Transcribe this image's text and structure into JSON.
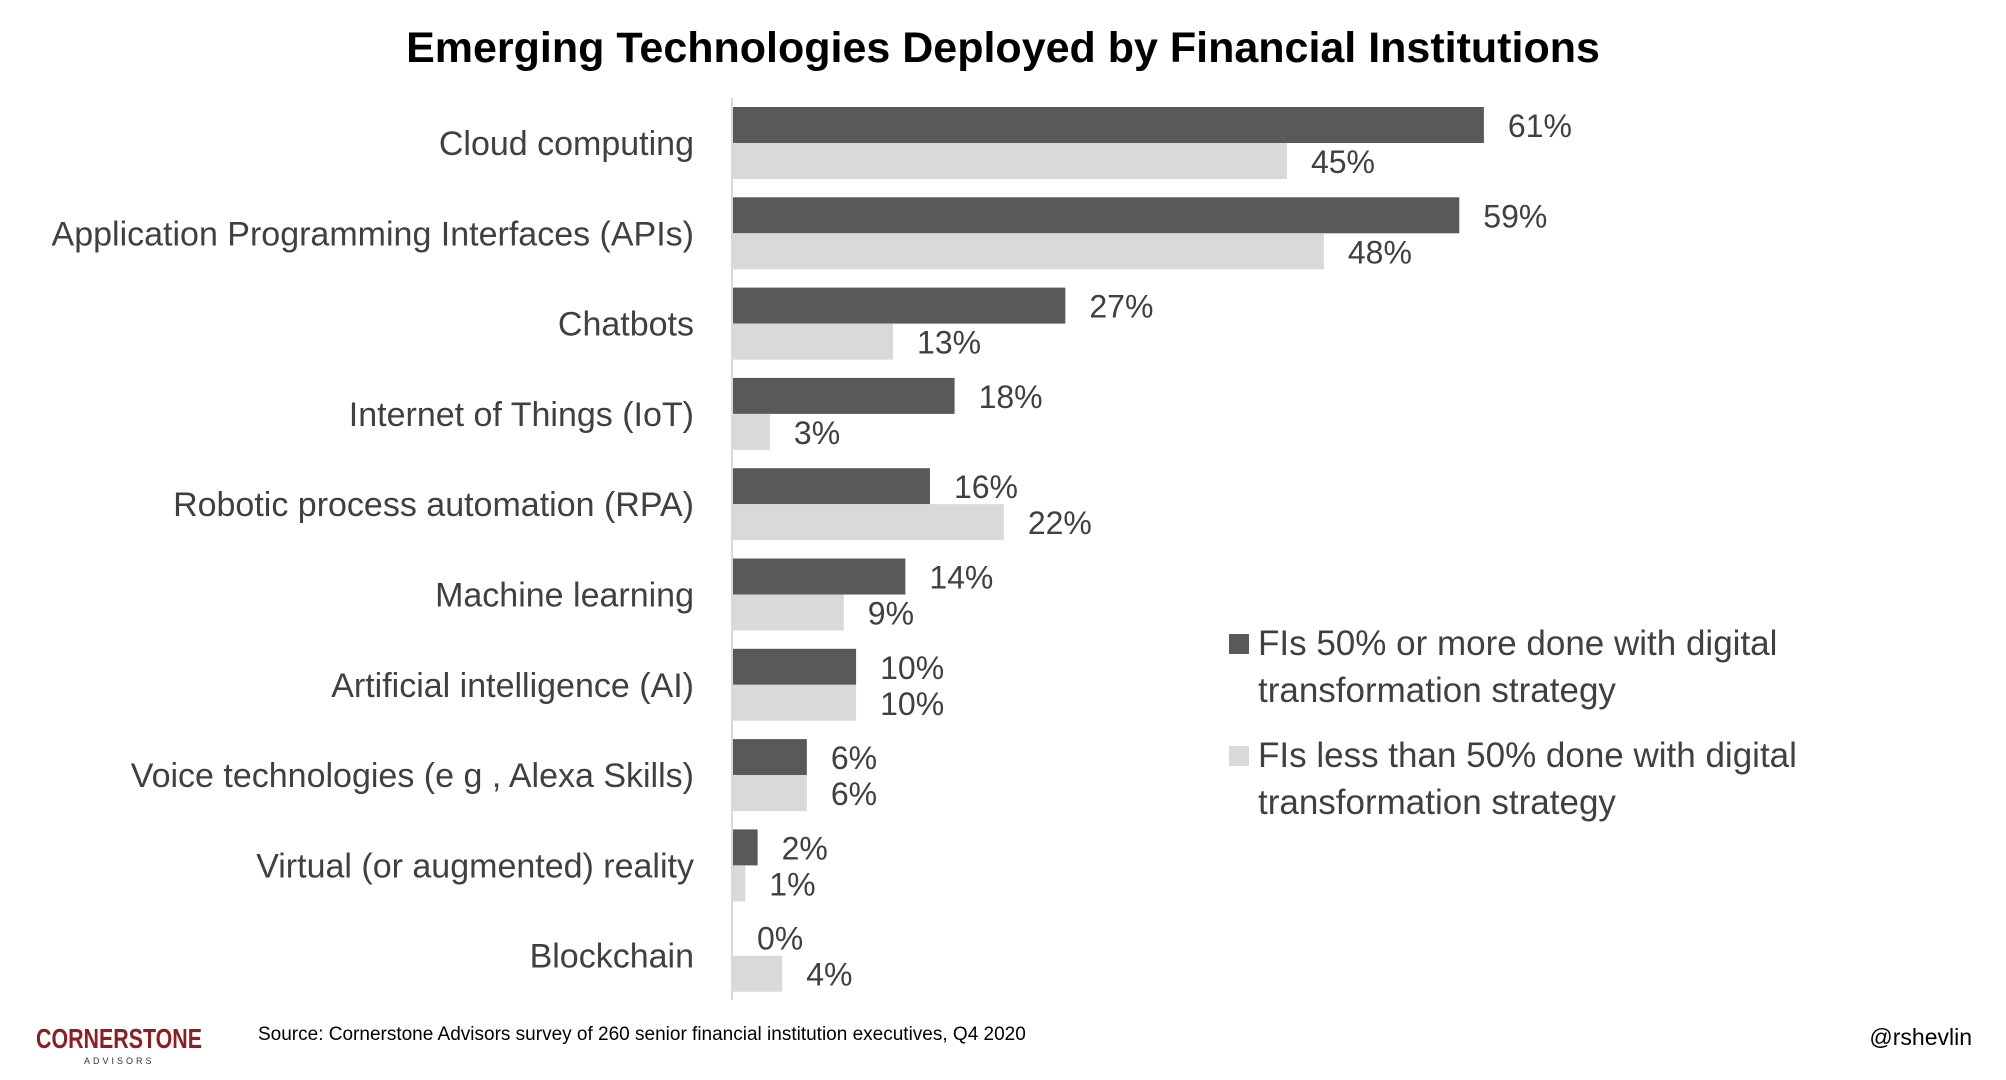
{
  "chart_data": {
    "type": "bar",
    "orientation": "horizontal",
    "title": "Emerging Technologies Deployed by Financial Institutions",
    "categories": [
      "Cloud computing",
      "Application Programming Interfaces (APIs)",
      "Chatbots",
      "Internet of Things (IoT)",
      "Robotic process automation (RPA)",
      "Machine learning",
      "Artificial intelligence (AI)",
      "Voice technologies (e g , Alexa Skills)",
      "Virtual (or augmented) reality",
      "Blockchain"
    ],
    "series": [
      {
        "name": "FIs 50% or more done with digital transformation strategy",
        "name_lines": [
          "FIs 50% or more done with digital",
          "transformation strategy"
        ],
        "color": "#595959",
        "values": [
          61,
          59,
          27,
          18,
          16,
          14,
          10,
          6,
          2,
          0
        ],
        "labels": [
          "61%",
          "59%",
          "27%",
          "18%",
          "16%",
          "14%",
          "10%",
          "6%",
          "2%",
          "0%"
        ]
      },
      {
        "name": "FIs less than 50% done with digital transformation strategy",
        "name_lines": [
          "FIs less than 50% done with digital",
          "transformation strategy"
        ],
        "color": "#d9d9d9",
        "values": [
          45,
          48,
          13,
          3,
          22,
          9,
          10,
          6,
          1,
          4
        ],
        "labels": [
          "45%",
          "48%",
          "13%",
          "3%",
          "22%",
          "9%",
          "10%",
          "6%",
          "1%",
          "4%"
        ]
      }
    ],
    "xlim": [
      0,
      70
    ],
    "grid": false,
    "legend_position": "right"
  },
  "footer": {
    "source": "Source: Cornerstone Advisors survey of 260 senior financial institution executives, Q4 2020",
    "handle": "@rshevlin",
    "logo": {
      "main": "CORNERSTONE",
      "sub": "ADVISORS",
      "color": "#8b1f23"
    }
  }
}
